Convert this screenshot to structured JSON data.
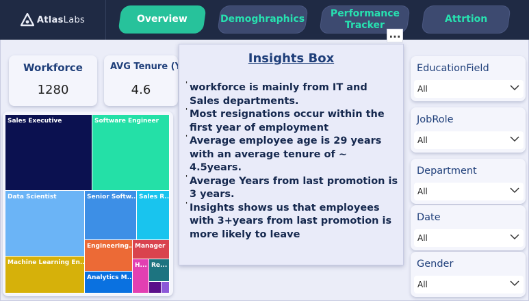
{
  "header": {
    "logo": "AtlasLabs",
    "logo_bold": "Atlas",
    "logo_thin": "Labs",
    "nav": [
      {
        "label": "Overview",
        "active": true
      },
      {
        "label": "Demoghraphics",
        "active": false
      },
      {
        "label": "Performance Tracker",
        "active": false
      },
      {
        "label": "Attrtion",
        "active": false
      }
    ]
  },
  "kpis": [
    {
      "label": "Workforce",
      "value": "1280"
    },
    {
      "label": "AVG Tenure (Years)",
      "value": "4.6"
    }
  ],
  "treemap": {
    "tiles": [
      {
        "label": "Sales Executive",
        "color": "#0b1150"
      },
      {
        "label": "Software Engineer",
        "color": "#24e0a7"
      },
      {
        "label": "Data Scientist",
        "color": "#6bb4f6"
      },
      {
        "label": "Senior Softw...",
        "color": "#3d8fe6"
      },
      {
        "label": "Sales R...",
        "color": "#19c4ee"
      },
      {
        "label": "Engineering...",
        "color": "#ec6a36"
      },
      {
        "label": "Manager",
        "color": "#d9434e"
      },
      {
        "label": "Machine Learning En...",
        "color": "#d6b10a"
      },
      {
        "label": "Analytics M...",
        "color": "#0a71e0"
      },
      {
        "label": "H...",
        "color": "#e23fb2"
      },
      {
        "label": "Re...",
        "color": "#1d7480"
      },
      {
        "label": "",
        "color": "#5a0f8a"
      },
      {
        "label": "",
        "color": "#8c58d8"
      }
    ]
  },
  "insights": {
    "title": "Insights Box",
    "items": [
      "workforce is mainly from IT and Sales departments.",
      "Most resignations occur within the first year of employment",
      "Average employee age is 29 years with an average tenure of ~ 4.5years.",
      "Average Years from last promotion is 3 years.",
      "Insights shows us that employees with 3+years from last promotion is more likely to leave"
    ],
    "more_label": "..."
  },
  "slicers": [
    {
      "title": "EducationField",
      "value": "All"
    },
    {
      "title": "JobRole",
      "value": "All"
    },
    {
      "title": "Department",
      "value": "All"
    },
    {
      "title": "Date",
      "value": "All"
    },
    {
      "title": "Gender",
      "value": "All"
    }
  ],
  "icons": {
    "logo": "atlas-logo-icon",
    "dropdown": "chevron-down-icon",
    "more": "more-options-icon"
  }
}
